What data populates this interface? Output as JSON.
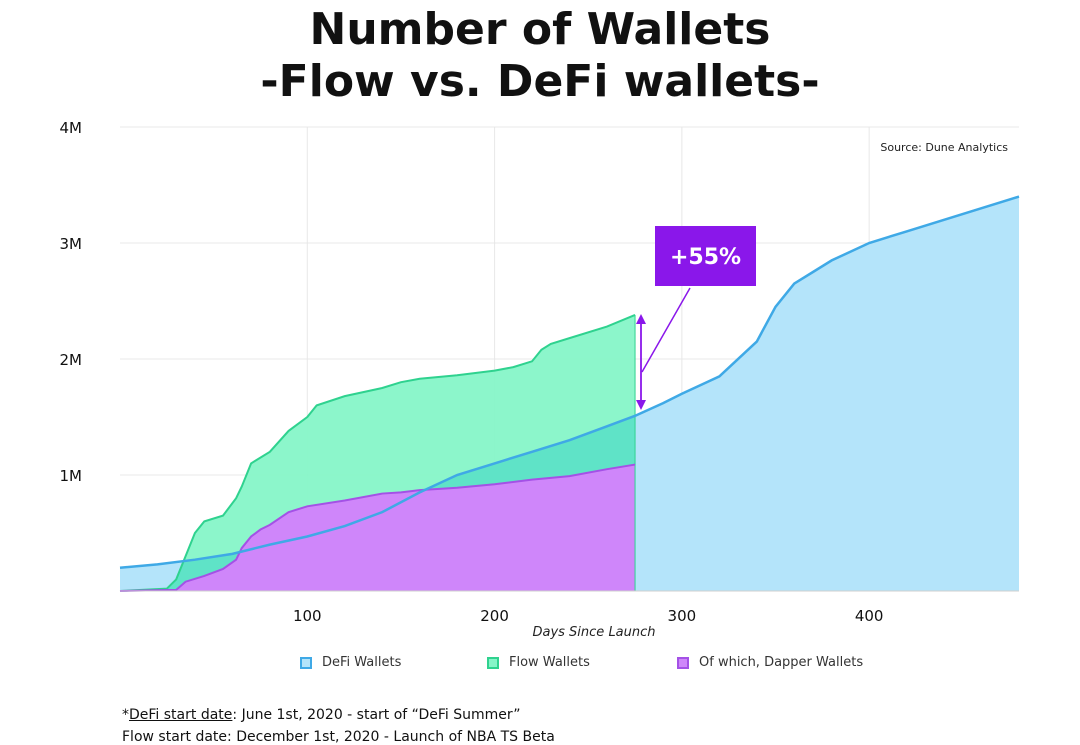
{
  "title_line1": "Number of Wallets",
  "title_line2": "-Flow vs. DeFi wallets-",
  "source": "Source: Dune Analytics",
  "annotation": "+55%",
  "colors": {
    "defi_fill": "#b4e4fa",
    "defi_line": "#3fa9e6",
    "flow_fill": "#86f5c8",
    "flow_line": "#2fd28f",
    "dapper_fill": "#cf86fa",
    "dapper_line": "#a451e6",
    "overlap_fill": "#5fe3c7",
    "annotation_bg": "#8a17ea",
    "arrow": "#8a17ea",
    "grid": "#e8e8e8"
  },
  "legend": [
    {
      "label": "DeFi Wallets",
      "icon": "square-swatch"
    },
    {
      "label": "Flow Wallets",
      "icon": "square-swatch"
    },
    {
      "label": "Of which, Dapper Wallets",
      "icon": "square-swatch"
    }
  ],
  "footnote1": {
    "prefix": "*",
    "underlined": "DeFi start date",
    "rest": ": June 1st, 2020 - start of “DeFi Summer”"
  },
  "footnote2": "Flow start date: December 1st, 2020 - Launch of NBA TS Beta",
  "chart_data": {
    "type": "area",
    "title": "Number of Wallets -Flow vs. DeFi wallets-",
    "xlabel": "Days Since Launch",
    "ylabel": "",
    "xlim": [
      0,
      480
    ],
    "ylim": [
      0,
      4000000
    ],
    "xticks": [
      100,
      200,
      300,
      400
    ],
    "xtick_labels": [
      "100",
      "200",
      "300",
      "400"
    ],
    "yticks": [
      1000000,
      2000000,
      3000000,
      4000000
    ],
    "ytick_labels": [
      "1M",
      "2M",
      "3M",
      "4M"
    ],
    "grid": true,
    "legend_position": "bottom",
    "series": [
      {
        "name": "DeFi Wallets",
        "x": [
          0,
          20,
          40,
          60,
          80,
          100,
          120,
          140,
          160,
          180,
          200,
          220,
          240,
          260,
          275,
          290,
          300,
          320,
          340,
          350,
          360,
          370,
          380,
          400,
          420,
          440,
          460,
          480
        ],
        "y": [
          200000,
          230000,
          270000,
          320000,
          400000,
          470000,
          560000,
          680000,
          850000,
          1000000,
          1100000,
          1200000,
          1300000,
          1420000,
          1510000,
          1620000,
          1700000,
          1850000,
          2150000,
          2450000,
          2650000,
          2750000,
          2850000,
          3000000,
          3100000,
          3200000,
          3300000,
          3400000
        ]
      },
      {
        "name": "Flow Wallets",
        "x": [
          0,
          25,
          30,
          35,
          40,
          45,
          55,
          62,
          65,
          70,
          80,
          90,
          100,
          105,
          120,
          140,
          150,
          160,
          180,
          200,
          210,
          220,
          225,
          230,
          240,
          260,
          275
        ],
        "y": [
          0,
          20000,
          100000,
          300000,
          500000,
          600000,
          650000,
          800000,
          900000,
          1100000,
          1200000,
          1380000,
          1500000,
          1600000,
          1680000,
          1750000,
          1800000,
          1830000,
          1860000,
          1900000,
          1930000,
          1980000,
          2080000,
          2130000,
          2180000,
          2280000,
          2380000
        ]
      },
      {
        "name": "Of which, Dapper Wallets",
        "x": [
          0,
          30,
          35,
          45,
          55,
          62,
          65,
          70,
          75,
          80,
          90,
          100,
          120,
          140,
          150,
          160,
          180,
          200,
          220,
          240,
          260,
          275
        ],
        "y": [
          0,
          10000,
          80000,
          130000,
          190000,
          270000,
          370000,
          470000,
          530000,
          570000,
          680000,
          730000,
          780000,
          840000,
          850000,
          870000,
          890000,
          920000,
          960000,
          990000,
          1050000,
          1090000
        ]
      }
    ]
  }
}
